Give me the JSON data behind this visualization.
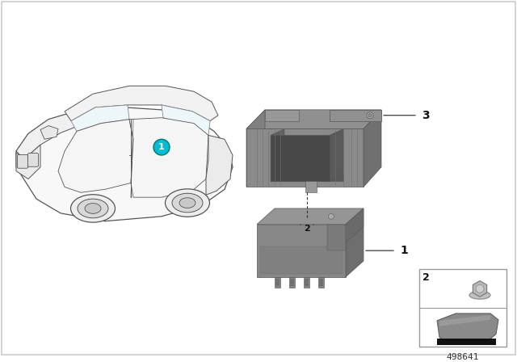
{
  "bg_color": "#ffffff",
  "border_color": "#cccccc",
  "part_number": "498641",
  "car_marker_color": "#00bcd4",
  "outline_color": "#555555",
  "part_gray_light": "#a0a0a0",
  "part_gray_mid": "#888888",
  "part_gray_dark": "#6a6a6a",
  "part_gray_darker": "#555555",
  "part_gray_shadow": "#505050",
  "label_font_size": 10,
  "pn_font_size": 8
}
